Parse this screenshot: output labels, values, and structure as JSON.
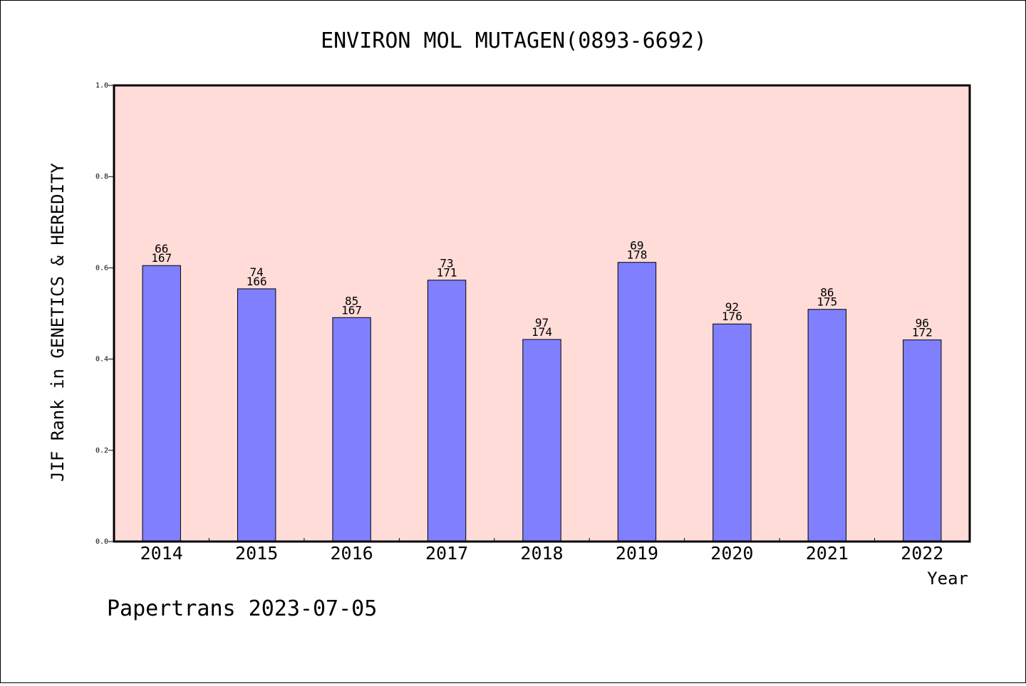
{
  "chart_data": {
    "type": "bar",
    "title": "ENVIRON MOL MUTAGEN(0893-6692)",
    "xlabel": "Year",
    "ylabel": "JIF Rank in GENETICS & HEREDITY",
    "ylim": [
      0,
      1.0
    ],
    "yticks": [
      "0.0",
      "0.2",
      "0.4",
      "0.6",
      "0.8",
      "1.0"
    ],
    "grid": false,
    "colors": {
      "bar": "#8080ff",
      "plot_bg": "#ffdcd8"
    },
    "categories": [
      "2014",
      "2015",
      "2016",
      "2017",
      "2018",
      "2019",
      "2020",
      "2021",
      "2022"
    ],
    "values": [
      0.605,
      0.554,
      0.491,
      0.573,
      0.443,
      0.612,
      0.477,
      0.509,
      0.442
    ],
    "rank": [
      "66",
      "74",
      "85",
      "73",
      "97",
      "69",
      "92",
      "86",
      "96"
    ],
    "total": [
      "167",
      "166",
      "167",
      "171",
      "174",
      "178",
      "176",
      "175",
      "172"
    ]
  },
  "footer": {
    "text": "Papertrans 2023-07-05"
  }
}
